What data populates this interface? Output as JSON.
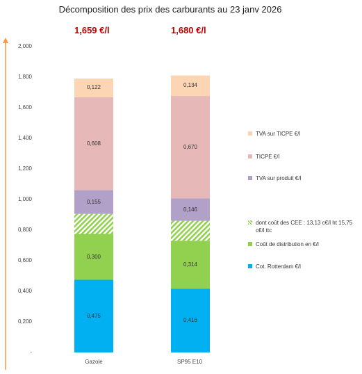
{
  "chart_data": {
    "type": "bar",
    "stacked": true,
    "title": "Décomposition des prix des carburants au 23 janv 2026",
    "categories": [
      "Gazole",
      "SP95 E10"
    ],
    "price_labels": [
      "1,659 €/l",
      "1,680 €/l"
    ],
    "ylim": [
      0,
      2.0
    ],
    "yticks": [
      "-",
      "0,200",
      "0,400",
      "0,600",
      "0,800",
      "1,000",
      "1,200",
      "1,400",
      "1,600",
      "1,800",
      "2,000"
    ],
    "series": [
      {
        "name": "Cot. Rotterdam €/l",
        "values": [
          0.475,
          0.416
        ],
        "labels": [
          "0,475",
          "0,416"
        ],
        "color": "#00b0f0"
      },
      {
        "name": "Coût de distribution en €/l",
        "values": [
          0.3,
          0.314
        ],
        "labels": [
          "0,300",
          "0,314"
        ],
        "color": "#92d050"
      },
      {
        "name": "dont coût des CEE : 13,13 c€/l ht 15,75 c€/l ttc",
        "values": [
          0.131,
          0.131
        ],
        "labels": [
          "",
          ""
        ],
        "color": "#92d050",
        "pattern": "hatch"
      },
      {
        "name": "TVA sur produit €/l",
        "values": [
          0.155,
          0.146
        ],
        "labels": [
          "0,155",
          "0,146"
        ],
        "color": "#b1a0c7"
      },
      {
        "name": "TICPE €/l",
        "values": [
          0.608,
          0.67
        ],
        "labels": [
          "0,608",
          "0,670"
        ],
        "color": "#e6b9b8"
      },
      {
        "name": "TVA sur TICPE €/l",
        "values": [
          0.122,
          0.134
        ],
        "labels": [
          "0,122",
          "0,134"
        ],
        "color": "#fcd5b4"
      }
    ],
    "legend_position": "right",
    "arrow_color": "#f79646"
  }
}
